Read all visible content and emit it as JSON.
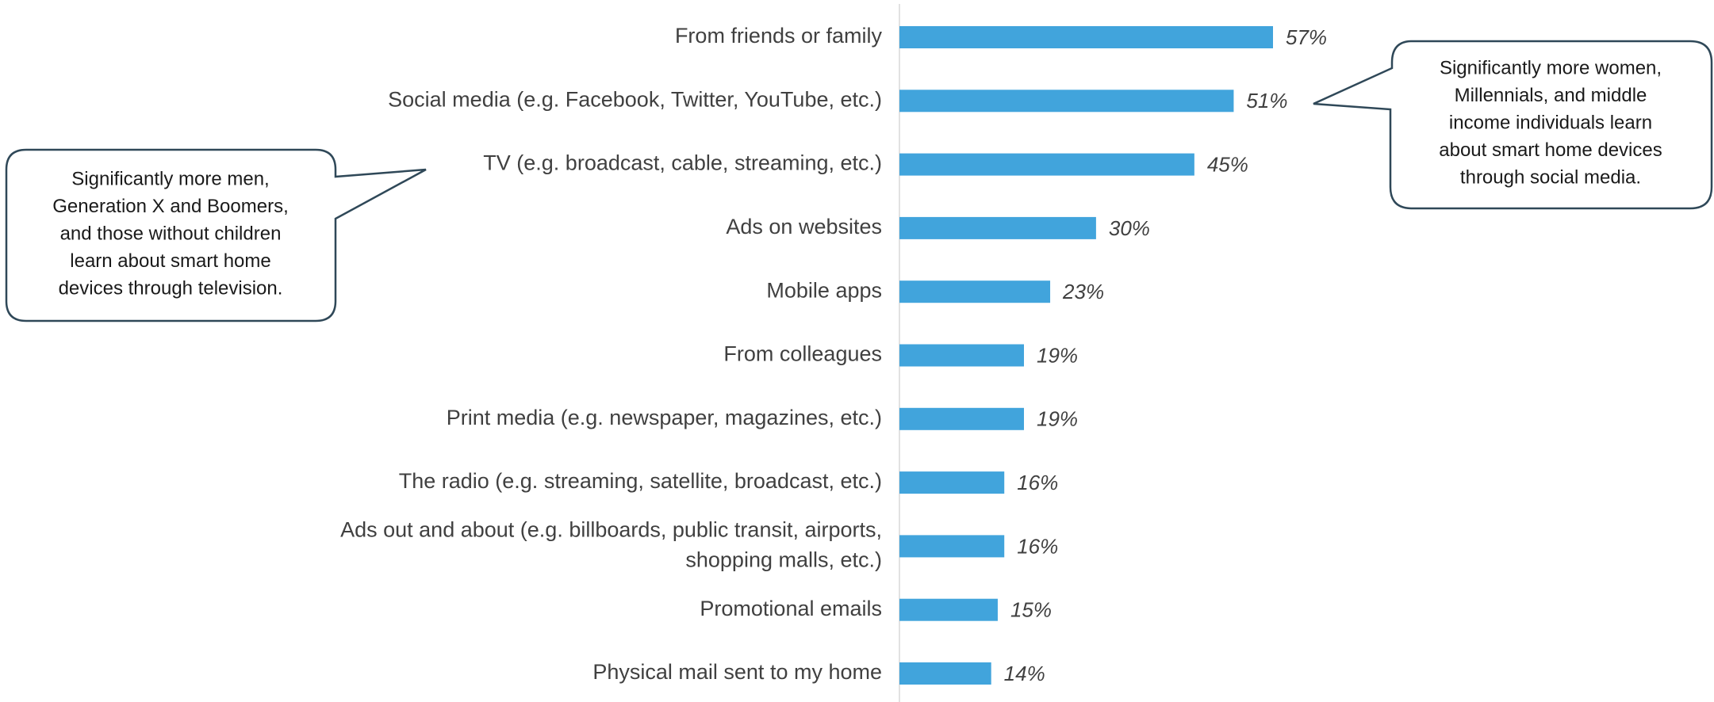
{
  "chart_data": {
    "type": "bar",
    "orientation": "horizontal",
    "categories": [
      "From friends or family",
      "Social media (e.g. Facebook, Twitter, YouTube, etc.)",
      "TV (e.g. broadcast, cable, streaming, etc.)",
      "Ads on websites",
      "Mobile apps",
      "From colleagues",
      "Print media (e.g. newspaper, magazines, etc.)",
      "The radio (e.g. streaming, satellite, broadcast, etc.)",
      "Ads out and about (e.g. billboards, public transit, airports,\nshopping malls, etc.)",
      "Promotional emails",
      "Physical mail sent to my home"
    ],
    "values": [
      57,
      51,
      45,
      30,
      23,
      19,
      19,
      16,
      16,
      15,
      14
    ],
    "value_labels": [
      "57%",
      "51%",
      "45%",
      "30%",
      "23%",
      "19%",
      "19%",
      "16%",
      "16%",
      "15%",
      "14%"
    ],
    "color": "#41a4dc",
    "annotations": [
      [
        "Significantly more men,",
        "Generation X and Boomers,",
        "and those without children",
        "learn about smart home",
        "devices through television."
      ],
      [
        "Significantly more women,",
        "Millennials, and middle",
        "income individuals learn",
        "about smart home devices",
        "through social media."
      ]
    ]
  }
}
